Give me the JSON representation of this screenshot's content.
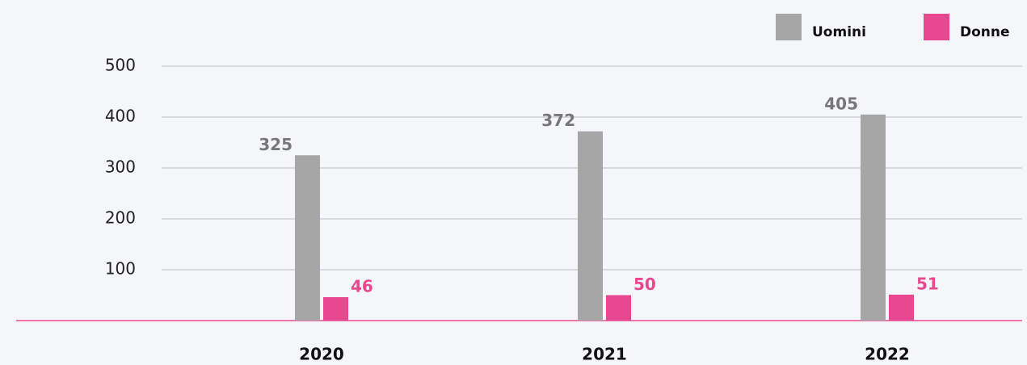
{
  "chart_data": {
    "type": "bar",
    "categories": [
      "2020",
      "2021",
      "2022"
    ],
    "series": [
      {
        "name": "Uomini",
        "color": "#a6a6a6",
        "values": [
          325,
          372,
          405
        ]
      },
      {
        "name": "Donne",
        "color": "#e8488f",
        "values": [
          46,
          50,
          51
        ]
      }
    ],
    "ylim": [
      0,
      500
    ],
    "yticks": [
      100,
      200,
      300,
      400,
      500
    ],
    "grid": true,
    "legend": "top-right"
  }
}
